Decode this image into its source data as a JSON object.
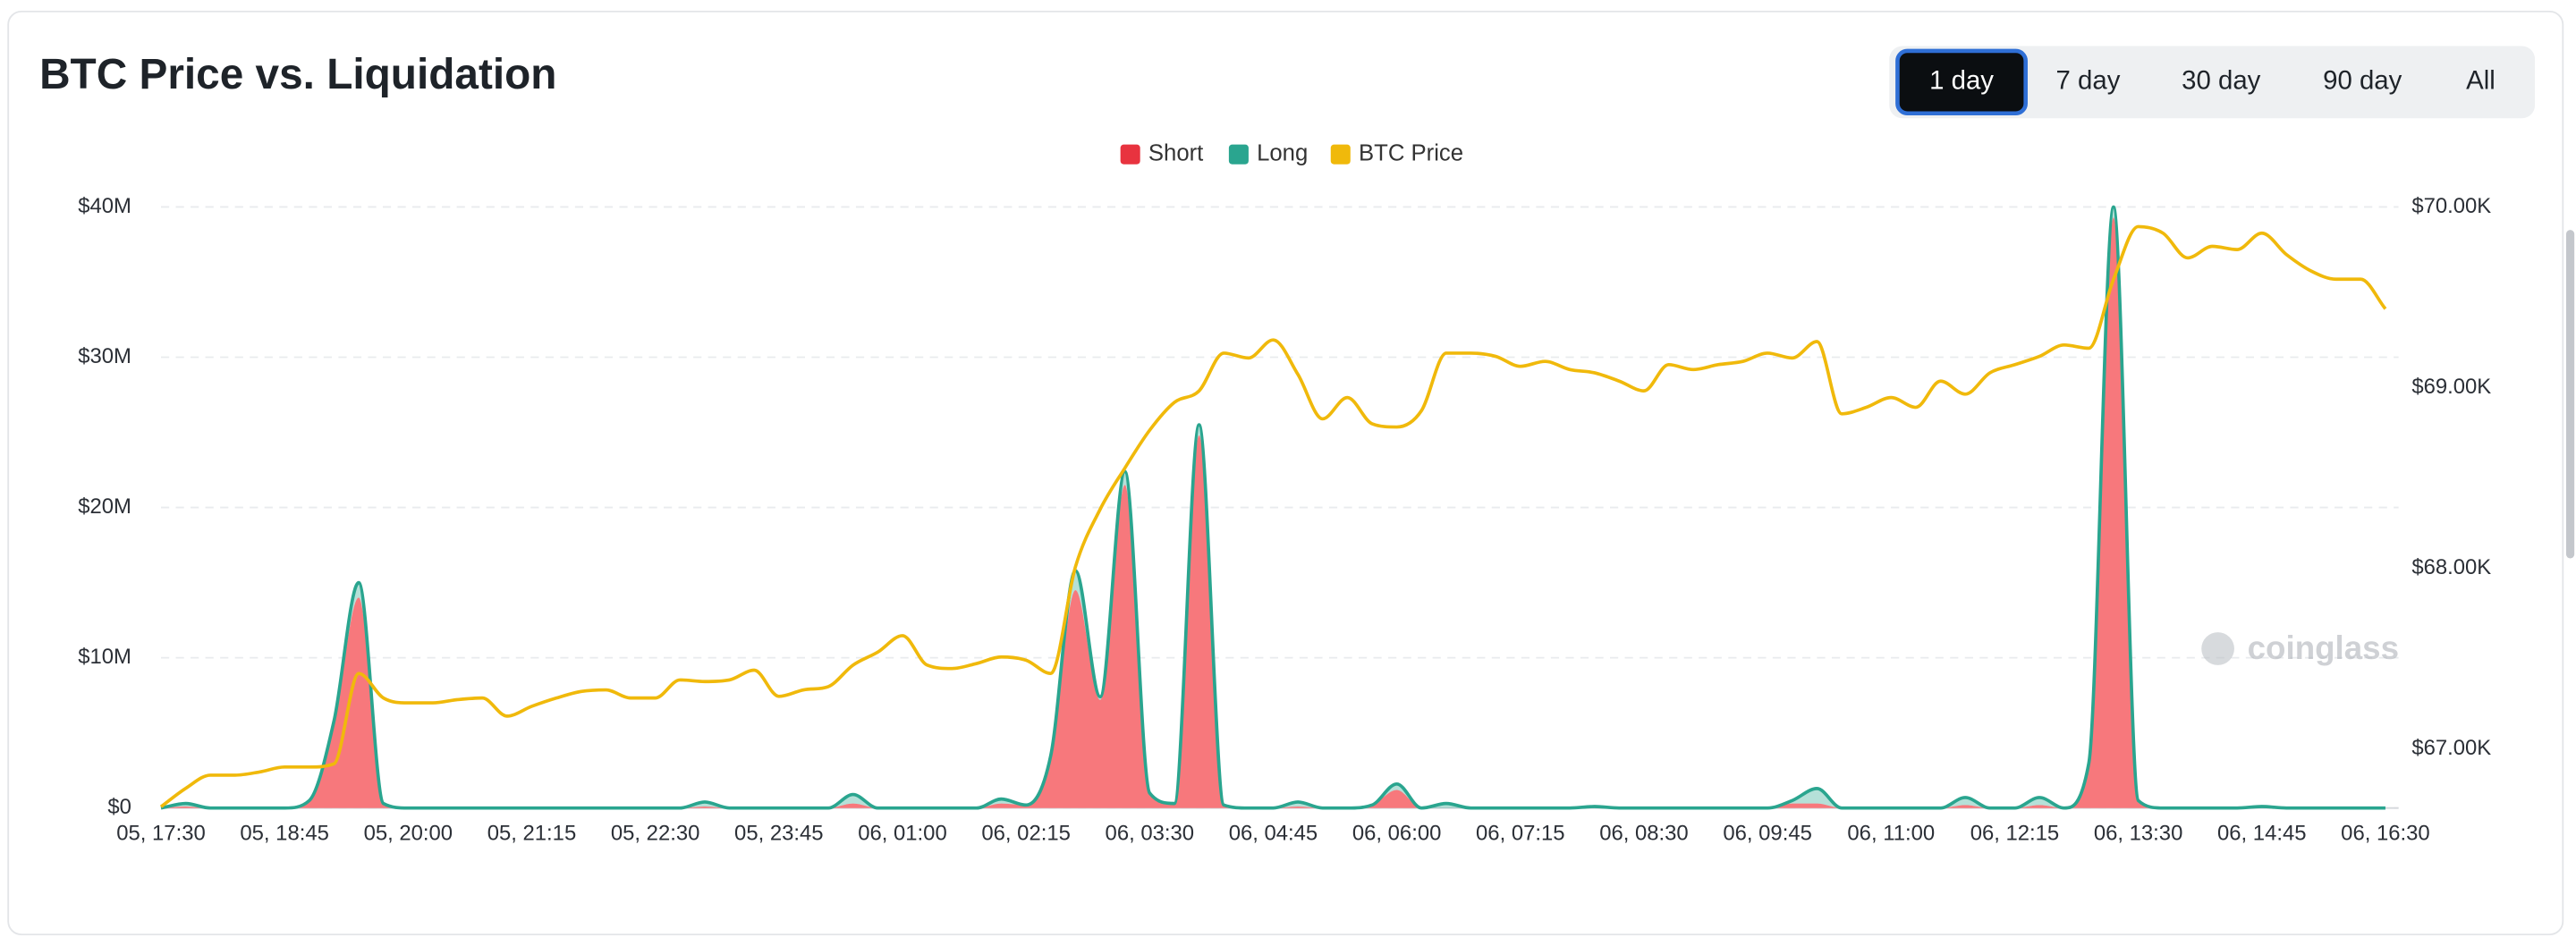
{
  "header": {
    "title": "BTC Price vs. Liquidation",
    "tabs": [
      "1 day",
      "7 day",
      "30 day",
      "90 day",
      "All"
    ],
    "active_tab": "1 day"
  },
  "watermark": "coinglass",
  "chart_data": {
    "type": "area",
    "stacked": true,
    "grid": true,
    "legend": "top",
    "categories": [
      "05, 17:30",
      null,
      null,
      null,
      null,
      "05, 18:45",
      null,
      null,
      null,
      null,
      "05, 20:00",
      null,
      null,
      null,
      null,
      "05, 21:15",
      null,
      null,
      null,
      null,
      "05, 22:30",
      null,
      null,
      null,
      null,
      "05, 23:45",
      null,
      null,
      null,
      null,
      "06, 01:00",
      null,
      null,
      null,
      null,
      "06, 02:15",
      null,
      null,
      null,
      null,
      "06, 03:30",
      null,
      null,
      null,
      null,
      "06, 04:45",
      null,
      null,
      null,
      null,
      "06, 06:00",
      null,
      null,
      null,
      null,
      "06, 07:15",
      null,
      null,
      null,
      null,
      "06, 08:30",
      null,
      null,
      null,
      null,
      "06, 09:45",
      null,
      null,
      null,
      null,
      "06, 11:00",
      null,
      null,
      null,
      null,
      "06, 12:15",
      null,
      null,
      null,
      null,
      "06, 13:30",
      null,
      null,
      null,
      null,
      "06, 14:45",
      null,
      null,
      null,
      null,
      "06, 16:30"
    ],
    "ylim": [
      0,
      40000000
    ],
    "yticks": [
      {
        "value": 0,
        "label": "$0"
      },
      {
        "value": 10000000,
        "label": "$10M"
      },
      {
        "value": 20000000,
        "label": "$20M"
      },
      {
        "value": 30000000,
        "label": "$30M"
      },
      {
        "value": 40000000,
        "label": "$40M"
      }
    ],
    "y2lim": [
      66673,
      70000
    ],
    "y2ticks": [
      {
        "value": 67000,
        "label": "$67.00K"
      },
      {
        "value": 68000,
        "label": "$68.00K"
      },
      {
        "value": 69000,
        "label": "$69.00K"
      },
      {
        "value": 70000,
        "label": "$70.00K"
      }
    ],
    "series": [
      {
        "name": "Short",
        "type": "area",
        "color": "#e8333f",
        "fill": "#f7787c",
        "values": [
          0,
          100000,
          0,
          0,
          0,
          0,
          500000,
          5500000,
          14000000,
          300000,
          0,
          0,
          0,
          0,
          0,
          0,
          0,
          0,
          0,
          0,
          0,
          0,
          100000,
          0,
          0,
          0,
          0,
          0,
          300000,
          0,
          0,
          0,
          0,
          0,
          300000,
          200000,
          3500000,
          14500000,
          7200000,
          21500000,
          1000000,
          300000,
          24800000,
          200000,
          0,
          0,
          100000,
          0,
          0,
          200000,
          1200000,
          0,
          0,
          0,
          0,
          0,
          0,
          0,
          0,
          0,
          0,
          0,
          0,
          0,
          0,
          0,
          300000,
          300000,
          0,
          0,
          0,
          0,
          0,
          200000,
          0,
          0,
          200000,
          0,
          3000000,
          39300000,
          500000,
          0,
          0,
          0,
          0,
          0,
          0,
          0,
          0,
          0,
          0
        ]
      },
      {
        "name": "Long",
        "type": "area",
        "color": "#2aa58f",
        "values": [
          0,
          200000,
          0,
          0,
          0,
          0,
          0,
          300000,
          1000000,
          0,
          0,
          0,
          0,
          0,
          0,
          0,
          0,
          0,
          0,
          0,
          0,
          0,
          300000,
          0,
          0,
          0,
          0,
          0,
          600000,
          0,
          0,
          0,
          0,
          0,
          300000,
          0,
          0,
          1300000,
          200000,
          900000,
          0,
          0,
          700000,
          0,
          0,
          0,
          300000,
          0,
          0,
          0,
          400000,
          0,
          300000,
          0,
          0,
          0,
          0,
          0,
          100000,
          0,
          0,
          0,
          0,
          0,
          0,
          0,
          200000,
          1000000,
          0,
          0,
          0,
          0,
          0,
          500000,
          0,
          0,
          500000,
          0,
          0,
          700000,
          0,
          0,
          0,
          0,
          0,
          100000,
          0,
          0,
          0,
          0,
          0
        ]
      },
      {
        "name": "BTC Price",
        "type": "line",
        "axis": "y2",
        "color": "#f0b90b",
        "values": [
          66680,
          66782,
          66855,
          66855,
          66873,
          66900,
          66900,
          66918,
          67418,
          67282,
          67255,
          67255,
          67273,
          67282,
          67182,
          67236,
          67282,
          67318,
          67327,
          67282,
          67282,
          67382,
          67373,
          67382,
          67436,
          67291,
          67327,
          67345,
          67464,
          67536,
          67627,
          67464,
          67445,
          67473,
          67509,
          67491,
          67418,
          68009,
          68327,
          68555,
          68764,
          68918,
          68982,
          69191,
          69164,
          69264,
          69073,
          68827,
          68945,
          68800,
          68782,
          68873,
          69191,
          69191,
          69173,
          69118,
          69145,
          69100,
          69082,
          69036,
          68982,
          69127,
          69100,
          69127,
          69145,
          69191,
          69164,
          69255,
          68855,
          68891,
          68945,
          68891,
          69036,
          68964,
          69082,
          69127,
          69173,
          69236,
          69218,
          69600,
          69891,
          69855,
          69718,
          69782,
          69764,
          69855,
          69736,
          69645,
          69600,
          69600,
          69436
        ]
      }
    ]
  }
}
